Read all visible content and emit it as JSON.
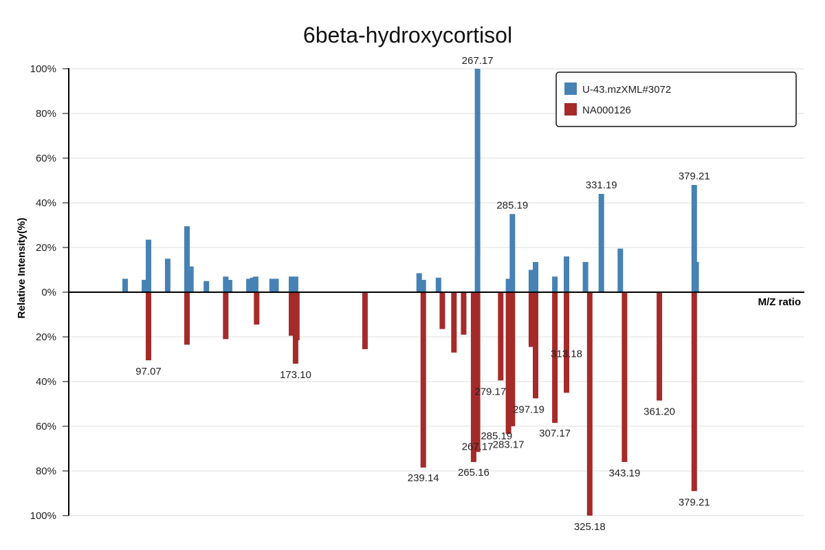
{
  "chart_data": {
    "type": "bar",
    "title": "6beta-hydroxycortisol",
    "xlabel": "M/Z ratio",
    "ylabel": "Relative Intensity(%)",
    "ylim": [
      -100,
      100
    ],
    "y_ticks": [
      "100%",
      "80%",
      "60%",
      "40%",
      "20%",
      "0%",
      "20%",
      "40%",
      "60%",
      "80%",
      "100%"
    ],
    "legend": {
      "position": "top-right",
      "items": [
        "U-43.mzXML#3072",
        "NA000126"
      ]
    },
    "colors": {
      "top": "#4682b4",
      "bottom": "#a52a2a",
      "axis": "#000000",
      "grid": "#dddddd"
    },
    "series": [
      {
        "name": "U-43.mzXML#3072",
        "direction": "up",
        "points": [
          {
            "mz": 85.0,
            "value": 6
          },
          {
            "mz": 95.0,
            "value": 5.5
          },
          {
            "mz": 97.07,
            "value": 23.5
          },
          {
            "mz": 107.0,
            "value": 15
          },
          {
            "mz": 117.0,
            "value": 29.5
          },
          {
            "mz": 119.0,
            "value": 11.5
          },
          {
            "mz": 127.0,
            "value": 5
          },
          {
            "mz": 137.0,
            "value": 7
          },
          {
            "mz": 139.0,
            "value": 5.5
          },
          {
            "mz": 149.0,
            "value": 6
          },
          {
            "mz": 151.0,
            "value": 6.5
          },
          {
            "mz": 152.5,
            "value": 7
          },
          {
            "mz": 161.0,
            "value": 6
          },
          {
            "mz": 163.0,
            "value": 6
          },
          {
            "mz": 171.0,
            "value": 7
          },
          {
            "mz": 173.1,
            "value": 7
          },
          {
            "mz": 237.0,
            "value": 8.5
          },
          {
            "mz": 239.14,
            "value": 5.5
          },
          {
            "mz": 247.0,
            "value": 6.5
          },
          {
            "mz": 267.17,
            "value": 100
          },
          {
            "mz": 283.17,
            "value": 6
          },
          {
            "mz": 285.19,
            "value": 35
          },
          {
            "mz": 295.0,
            "value": 10
          },
          {
            "mz": 297.19,
            "value": 13.5
          },
          {
            "mz": 307.17,
            "value": 7
          },
          {
            "mz": 313.18,
            "value": 16
          },
          {
            "mz": 323.0,
            "value": 13.5
          },
          {
            "mz": 331.19,
            "value": 44
          },
          {
            "mz": 341.0,
            "value": 19.5
          },
          {
            "mz": 379.21,
            "value": 48
          },
          {
            "mz": 380.2,
            "value": 13.5
          }
        ],
        "labels": [
          "267.17",
          "285.19",
          "331.19",
          "379.21"
        ]
      },
      {
        "name": "NA000126",
        "direction": "down",
        "points": [
          {
            "mz": 97.07,
            "value": 30.5
          },
          {
            "mz": 117.0,
            "value": 23.5
          },
          {
            "mz": 137.0,
            "value": 21
          },
          {
            "mz": 153.0,
            "value": 14.5
          },
          {
            "mz": 171.0,
            "value": 19.5
          },
          {
            "mz": 173.1,
            "value": 32
          },
          {
            "mz": 173.8,
            "value": 21.5
          },
          {
            "mz": 209.0,
            "value": 25.5
          },
          {
            "mz": 239.14,
            "value": 78.5
          },
          {
            "mz": 249.0,
            "value": 16.5
          },
          {
            "mz": 255.0,
            "value": 27
          },
          {
            "mz": 260.0,
            "value": 19
          },
          {
            "mz": 265.16,
            "value": 76
          },
          {
            "mz": 267.17,
            "value": 71.5
          },
          {
            "mz": 279.17,
            "value": 39.5
          },
          {
            "mz": 283.17,
            "value": 63.5
          },
          {
            "mz": 285.19,
            "value": 60
          },
          {
            "mz": 297.19,
            "value": 47.5
          },
          {
            "mz": 295.0,
            "value": 24.5
          },
          {
            "mz": 307.17,
            "value": 58.5
          },
          {
            "mz": 313.18,
            "value": 45
          },
          {
            "mz": 325.18,
            "value": 100
          },
          {
            "mz": 343.19,
            "value": 76
          },
          {
            "mz": 361.2,
            "value": 48.5
          },
          {
            "mz": 379.21,
            "value": 89
          }
        ],
        "labels": [
          "97.07",
          "173.10",
          "239.14",
          "265.16",
          "267.17",
          "279.17",
          "283.17",
          "285.19",
          "297.19",
          "307.17",
          "313.18",
          "325.18",
          "343.19",
          "361.20",
          "379.21"
        ]
      }
    ]
  }
}
